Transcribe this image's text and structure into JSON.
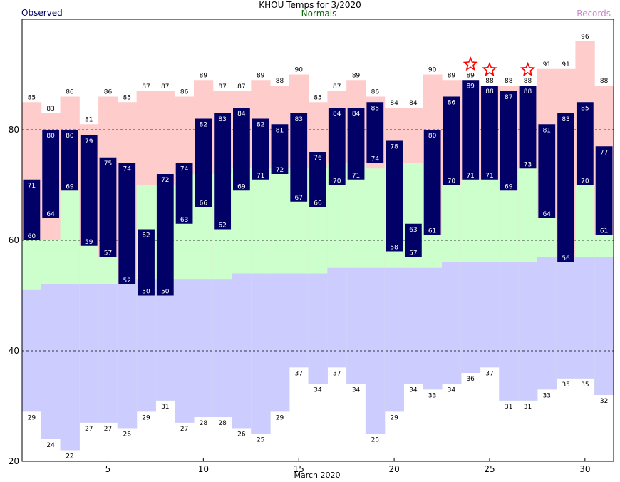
{
  "header": {
    "title": "KHOU Temps for 3/2020",
    "observed_label": "Observed",
    "normals_label": "Normals",
    "records_label": "Records"
  },
  "colors": {
    "observed_bar": "#000066",
    "record_high_fill": "#ffcccc",
    "normal_fill": "#ccffcc",
    "record_low_fill": "#ccccff",
    "star": "#ff0000",
    "observed_text": "#000066",
    "normals_text": "#006600",
    "records_text": "#cc88cc"
  },
  "chart_data": {
    "type": "bar",
    "title": "KHOU Temps for 3/2020",
    "xlabel": "March 2020",
    "ylabel": "",
    "ylim": [
      20,
      100
    ],
    "xlim": [
      0.5,
      31.5
    ],
    "y_ticks": [
      20,
      40,
      60,
      80
    ],
    "x_ticks": [
      5,
      10,
      15,
      20,
      25,
      30
    ],
    "gridlines_dashed": [
      40,
      60,
      80
    ],
    "days": [
      1,
      2,
      3,
      4,
      5,
      6,
      7,
      8,
      9,
      10,
      11,
      12,
      13,
      14,
      15,
      16,
      17,
      18,
      19,
      20,
      21,
      22,
      23,
      24,
      25,
      26,
      27,
      28,
      29,
      30,
      31
    ],
    "series": [
      {
        "name": "Observed High",
        "values": [
          71,
          80,
          80,
          79,
          75,
          74,
          62,
          72,
          74,
          82,
          83,
          84,
          82,
          81,
          83,
          76,
          84,
          84,
          85,
          78,
          63,
          80,
          86,
          89,
          88,
          87,
          88,
          81,
          83,
          85,
          77
        ]
      },
      {
        "name": "Observed Low",
        "values": [
          60,
          64,
          69,
          59,
          57,
          52,
          50,
          50,
          63,
          66,
          62,
          69,
          71,
          72,
          67,
          66,
          70,
          71,
          74,
          58,
          57,
          61,
          70,
          71,
          71,
          69,
          73,
          64,
          56,
          70,
          61
        ]
      },
      {
        "name": "Record High",
        "values": [
          85,
          83,
          86,
          81,
          86,
          85,
          87,
          87,
          86,
          89,
          87,
          87,
          89,
          88,
          90,
          85,
          87,
          89,
          86,
          84,
          84,
          90,
          89,
          89,
          88,
          88,
          88,
          91,
          91,
          96,
          88
        ]
      },
      {
        "name": "Normal High",
        "values": [
          60,
          60,
          69,
          59,
          57,
          52,
          70,
          70,
          72,
          72,
          72,
          73,
          73,
          73,
          73,
          73,
          74,
          74,
          73,
          74,
          74,
          61,
          70,
          71,
          71,
          69,
          73,
          64,
          56,
          70,
          61
        ]
      },
      {
        "name": "Normal Low",
        "values": [
          51,
          52,
          52,
          52,
          52,
          52,
          53,
          53,
          53,
          53,
          53,
          54,
          54,
          54,
          54,
          54,
          55,
          55,
          55,
          55,
          55,
          55,
          56,
          56,
          56,
          56,
          56,
          57,
          57,
          57,
          57
        ]
      },
      {
        "name": "Record Low",
        "values": [
          29,
          24,
          22,
          27,
          27,
          26,
          29,
          31,
          27,
          28,
          28,
          26,
          25,
          29,
          37,
          34,
          37,
          34,
          25,
          29,
          34,
          33,
          34,
          36,
          37,
          31,
          31,
          33,
          35,
          35,
          32
        ]
      }
    ],
    "record_high_set_days": [
      24,
      25,
      27
    ]
  }
}
